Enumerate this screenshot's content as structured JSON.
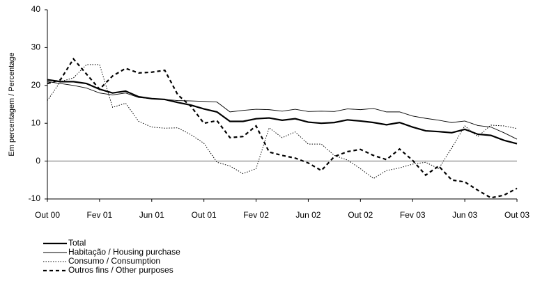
{
  "chart_data": {
    "type": "line",
    "y_label": "Em percentagem / Percentage",
    "categories": [
      "Out 00",
      null,
      null,
      null,
      "Fev 01",
      null,
      null,
      null,
      "Jun 01",
      null,
      null,
      null,
      "Out 01",
      null,
      null,
      null,
      "Fev 02",
      null,
      null,
      null,
      "Jun 02",
      null,
      null,
      null,
      "Out 02",
      null,
      null,
      null,
      "Fev 03",
      null,
      null,
      null,
      "Jun 03",
      null,
      null,
      null,
      "Out 03"
    ],
    "ylim": [
      -10,
      40
    ],
    "yticks": [
      -10,
      0,
      10,
      20,
      30,
      40
    ],
    "grid": false,
    "series": [
      {
        "name": "Total",
        "color": "#000000",
        "values": [
          21.5,
          21,
          21,
          20.5,
          19,
          18,
          18.5,
          17,
          16.5,
          16.3,
          15.5,
          14.8,
          13.8,
          13,
          10.5,
          10.5,
          11.2,
          11.4,
          10.8,
          11.2,
          10.3,
          10,
          10.2,
          10.9,
          10.6,
          10.2,
          9.6,
          10.2,
          9,
          8,
          7.8,
          7.5,
          8.4,
          7.1,
          6.8,
          5.5,
          4.6
        ]
      },
      {
        "name": "Habitação / Housing purchase",
        "color": "#000000",
        "values": [
          21,
          20.5,
          20,
          19.3,
          18,
          17.5,
          18,
          16.8,
          16.5,
          16.3,
          16,
          15.9,
          15.8,
          15.6,
          13,
          13.4,
          13.7,
          13.6,
          13.2,
          13.7,
          13.1,
          13.2,
          13.1,
          13.8,
          13.6,
          13.9,
          13,
          13,
          11.9,
          11.3,
          10.8,
          10.2,
          10.6,
          9.4,
          9,
          7.5,
          5.8
        ]
      },
      {
        "name": "Consumo / Consumption",
        "color": "#000000",
        "values": [
          16,
          21,
          22,
          25.5,
          25.5,
          14.2,
          15.3,
          10.5,
          9,
          8.7,
          8.8,
          7,
          4.7,
          -0.3,
          -1.3,
          -3.3,
          -2,
          8.8,
          6.2,
          7.7,
          4.5,
          4.5,
          1.5,
          0.3,
          -2,
          -4.6,
          -2.5,
          -1.8,
          -0.8,
          -0.3,
          -2,
          3.5,
          9.3,
          6.5,
          9.5,
          9.3,
          8.6
        ]
      },
      {
        "name": "Outros fins / Other purposes",
        "color": "#000000",
        "values": [
          20.5,
          21.5,
          27,
          23,
          19,
          22.5,
          24.5,
          23.3,
          23.5,
          24,
          17.5,
          14.5,
          10,
          10.7,
          6.2,
          6.5,
          9.3,
          2.4,
          1.5,
          0.8,
          -0.5,
          -2.5,
          1.2,
          2.5,
          3.1,
          1.5,
          0.4,
          3.2,
          0.2,
          -3.7,
          -1.3,
          -5,
          -5.5,
          -7.7,
          -9.7,
          -9,
          -7.2
        ]
      }
    ]
  }
}
